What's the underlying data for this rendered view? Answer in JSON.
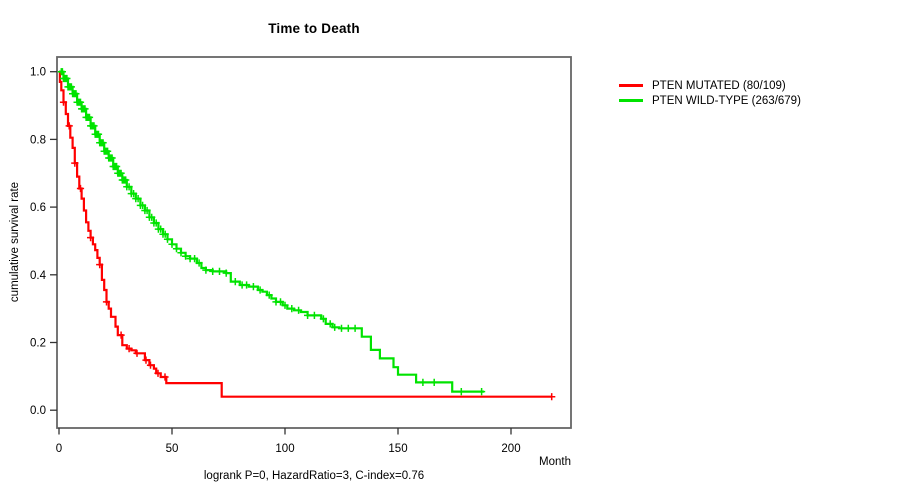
{
  "chart": {
    "title": "Time to Death",
    "ylabel": "cumulative survival rate",
    "xlabel": "Month",
    "caption": "logrank P=0, HazardRatio=3, C-index=0.76"
  },
  "chart_data": {
    "type": "line",
    "subtype": "kaplan-meier-step",
    "title": "Time to Death",
    "xlabel": "Month",
    "ylabel": "cumulative survival rate",
    "caption": "logrank P=0, HazardRatio=3, C-index=0.76",
    "xlim": [
      0,
      226
    ],
    "ylim": [
      0,
      1.04
    ],
    "x_ticks": [
      0,
      50,
      100,
      150,
      200
    ],
    "y_ticks": [
      "0.0",
      "0.2",
      "0.4",
      "0.6",
      "0.8",
      "1.0"
    ],
    "grid": false,
    "legend_position": "right-outside",
    "colors": {
      "frame": "#666666",
      "tick": "#333333",
      "text": "#000000"
    },
    "series": [
      {
        "id": "pten-mutated",
        "name": "PTEN MUTATED (80/109)",
        "color": "#ff0000",
        "end_month": 218,
        "steps": [
          [
            0,
            1.0
          ],
          [
            0.4,
            0.97
          ],
          [
            1,
            0.945
          ],
          [
            2,
            0.91
          ],
          [
            3,
            0.875
          ],
          [
            4,
            0.84
          ],
          [
            5,
            0.805
          ],
          [
            6,
            0.775
          ],
          [
            7,
            0.73
          ],
          [
            8,
            0.69
          ],
          [
            9,
            0.655
          ],
          [
            10,
            0.625
          ],
          [
            11,
            0.59
          ],
          [
            12,
            0.555
          ],
          [
            13,
            0.53
          ],
          [
            14,
            0.51
          ],
          [
            15,
            0.49
          ],
          [
            16,
            0.473
          ],
          [
            17,
            0.45
          ],
          [
            18,
            0.43
          ],
          [
            19,
            0.385
          ],
          [
            20,
            0.355
          ],
          [
            21,
            0.32
          ],
          [
            22,
            0.3
          ],
          [
            23,
            0.276
          ],
          [
            25,
            0.247
          ],
          [
            26,
            0.222
          ],
          [
            28,
            0.192
          ],
          [
            30,
            0.182
          ],
          [
            32,
            0.177
          ],
          [
            34,
            0.168
          ],
          [
            38,
            0.148
          ],
          [
            40,
            0.133
          ],
          [
            42,
            0.123
          ],
          [
            43,
            0.109
          ],
          [
            45,
            0.098
          ],
          [
            47.5,
            0.08
          ],
          [
            72,
            0.04
          ]
        ],
        "censor_months": [
          2,
          4.5,
          7,
          9.5,
          14,
          18,
          21,
          27.5,
          31,
          34.5,
          38.5,
          40.5,
          43.8,
          46.9,
          218
        ]
      },
      {
        "id": "pten-wild-type",
        "name": "PTEN WILD-TYPE (263/679)",
        "color": "#00e300",
        "end_month": 188,
        "steps": [
          [
            0,
            1.0
          ],
          [
            2,
            0.98
          ],
          [
            4,
            0.955
          ],
          [
            6,
            0.935
          ],
          [
            8,
            0.91
          ],
          [
            10,
            0.89
          ],
          [
            12,
            0.865
          ],
          [
            14,
            0.84
          ],
          [
            16,
            0.815
          ],
          [
            18,
            0.79
          ],
          [
            20,
            0.765
          ],
          [
            22,
            0.745
          ],
          [
            24,
            0.72
          ],
          [
            26,
            0.7
          ],
          [
            28,
            0.68
          ],
          [
            30,
            0.66
          ],
          [
            32,
            0.64
          ],
          [
            34,
            0.625
          ],
          [
            36,
            0.605
          ],
          [
            38,
            0.59
          ],
          [
            40,
            0.57
          ],
          [
            42,
            0.553
          ],
          [
            44,
            0.535
          ],
          [
            46,
            0.52
          ],
          [
            48,
            0.505
          ],
          [
            50,
            0.49
          ],
          [
            52,
            0.477
          ],
          [
            54,
            0.465
          ],
          [
            56,
            0.455
          ],
          [
            58,
            0.448
          ],
          [
            61,
            0.435
          ],
          [
            63,
            0.42
          ],
          [
            65,
            0.414
          ],
          [
            68,
            0.41
          ],
          [
            74,
            0.405
          ],
          [
            76,
            0.38
          ],
          [
            80,
            0.37
          ],
          [
            84,
            0.365
          ],
          [
            88,
            0.355
          ],
          [
            90,
            0.35
          ],
          [
            92,
            0.34
          ],
          [
            94,
            0.33
          ],
          [
            96,
            0.32
          ],
          [
            99,
            0.31
          ],
          [
            101,
            0.3
          ],
          [
            104,
            0.295
          ],
          [
            107,
            0.29
          ],
          [
            110,
            0.28
          ],
          [
            116,
            0.27
          ],
          [
            118,
            0.255
          ],
          [
            121,
            0.245
          ],
          [
            124,
            0.242
          ],
          [
            134,
            0.217
          ],
          [
            138,
            0.178
          ],
          [
            142,
            0.153
          ],
          [
            148,
            0.127
          ],
          [
            150,
            0.105
          ],
          [
            158,
            0.082
          ],
          [
            174,
            0.055
          ]
        ],
        "censor_months": [
          1,
          1.5,
          2,
          2.5,
          3,
          3.5,
          4,
          4.5,
          5,
          5.5,
          6,
          6.5,
          7,
          7.5,
          8,
          8.5,
          9,
          9.5,
          10,
          10.5,
          11,
          11.5,
          12,
          12.5,
          13,
          13.5,
          14,
          14.5,
          15,
          15.5,
          16,
          16.5,
          17,
          17.5,
          18,
          18.5,
          19,
          19.5,
          20,
          20.5,
          21,
          21.5,
          22,
          22.5,
          23,
          23.5,
          24,
          24.5,
          25,
          25.5,
          26,
          26.5,
          27,
          27.5,
          28,
          28.5,
          29,
          29.5,
          30,
          31,
          32,
          33,
          34,
          35,
          36,
          37,
          38,
          39,
          40,
          41,
          42,
          43,
          44,
          45,
          46,
          47,
          48,
          50,
          52,
          54,
          56,
          58,
          60,
          62,
          65,
          68,
          71,
          74,
          78,
          81,
          83,
          86,
          89,
          93,
          96,
          98,
          100,
          103,
          106,
          110,
          113,
          117,
          120,
          122,
          125,
          128,
          131,
          161,
          166,
          178,
          187
        ]
      }
    ]
  }
}
